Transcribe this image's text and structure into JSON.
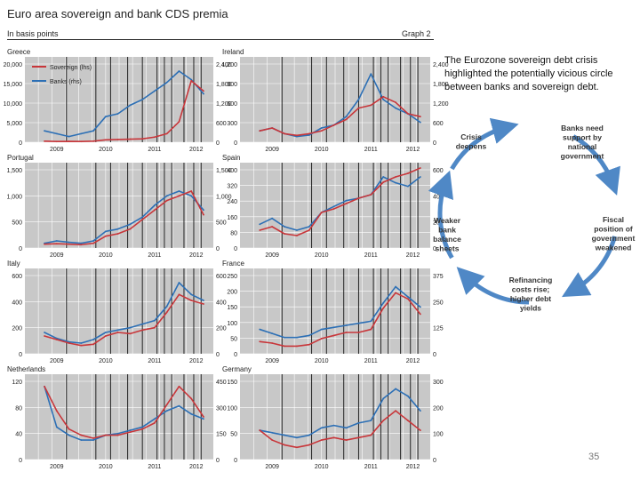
{
  "figure": {
    "title": "Euro area sovereign and bank CDS premia",
    "subtitle": "In basis points",
    "graph_label": "Graph 2"
  },
  "callout": "The Eurozone sovereign debt crisis highlighted the potentially vicious circle between banks and sovereign debt.",
  "cycle": {
    "nodes": [
      {
        "lines": [
          "Banks need",
          "support by",
          "national",
          "government"
        ]
      },
      {
        "lines": [
          "Fiscal",
          "position of",
          "government",
          "weakened"
        ]
      },
      {
        "lines": [
          "Refinancing",
          "costs rise;",
          "higher debt",
          "yields"
        ]
      },
      {
        "lines": [
          "Weaker",
          "bank",
          "balance",
          "sheets"
        ]
      },
      {
        "lines": [
          "Crisis",
          "deepens"
        ]
      }
    ]
  },
  "page_number": "35",
  "colors": {
    "sovereign": "#c8363a",
    "banks": "#2c6fb5",
    "panel_bg": "#c8c8c8",
    "grid": "#ffffff",
    "event_line": "#111111",
    "cycle_arrow": "#4f88c6"
  },
  "chart_data": [
    {
      "type": "line",
      "title": "Greece",
      "categories": [
        "2009",
        "2010",
        "2011",
        "2012"
      ],
      "x": [
        2009.0,
        2009.25,
        2009.5,
        2009.75,
        2010.0,
        2010.25,
        2010.5,
        2010.75,
        2011.0,
        2011.25,
        2011.5,
        2011.75,
        2012.0,
        2012.25
      ],
      "ylim_left": [
        0,
        25000
      ],
      "ylim_right": [
        0,
        3000
      ],
      "left_ticks": [
        "0",
        "5,000",
        "10,000",
        "15,000",
        "20,000"
      ],
      "right_ticks": [
        "0",
        "600",
        "1,200",
        "1,800",
        "2,400"
      ],
      "legend": [
        {
          "label": "Sovereign (lhs)"
        },
        {
          "label": "Banks (rhs)"
        }
      ],
      "series": [
        {
          "name": "Sovereign (lhs)",
          "axis": "left",
          "values": [
            300,
            200,
            250,
            200,
            300,
            700,
            800,
            900,
            1000,
            1500,
            2500,
            6000,
            18000,
            15000
          ]
        },
        {
          "name": "Banks (rhs)",
          "axis": "right",
          "values": [
            400,
            300,
            200,
            300,
            400,
            900,
            1000,
            1300,
            1500,
            1800,
            2100,
            2500,
            2200,
            1700
          ]
        }
      ]
    },
    {
      "type": "line",
      "title": "Ireland",
      "categories": [
        "2009",
        "2010",
        "2011",
        "2012"
      ],
      "x": [
        2009.0,
        2009.25,
        2009.5,
        2009.75,
        2010.0,
        2010.25,
        2010.5,
        2010.75,
        2011.0,
        2011.25,
        2011.5,
        2011.75,
        2012.0,
        2012.25
      ],
      "ylim_left": [
        0,
        1500
      ],
      "ylim_right": [
        0,
        3000
      ],
      "left_ticks": [
        "0",
        "300",
        "600",
        "900",
        "1,200"
      ],
      "right_ticks": [
        "0",
        "600",
        "1,200",
        "1,800",
        "2,400"
      ],
      "legend": [],
      "series": [
        {
          "name": "Sovereign",
          "axis": "left",
          "values": [
            200,
            250,
            150,
            120,
            150,
            200,
            300,
            400,
            600,
            650,
            800,
            700,
            500,
            450
          ]
        },
        {
          "name": "Banks",
          "axis": "right",
          "values": [
            400,
            500,
            300,
            200,
            250,
            500,
            600,
            900,
            1500,
            2400,
            1500,
            1200,
            1000,
            700
          ]
        }
      ]
    },
    {
      "type": "line",
      "title": "Portugal",
      "categories": [
        "2009",
        "2010",
        "2011",
        "2012"
      ],
      "x": [
        2009.0,
        2009.25,
        2009.5,
        2009.75,
        2010.0,
        2010.25,
        2010.5,
        2010.75,
        2011.0,
        2011.25,
        2011.5,
        2011.75,
        2012.0,
        2012.25
      ],
      "ylim_left": [
        0,
        1800
      ],
      "ylim_right": [
        0,
        1800
      ],
      "left_ticks": [
        "0",
        "500",
        "1,000",
        "1,500"
      ],
      "right_ticks": [
        "0",
        "500",
        "1,000",
        "1,500"
      ],
      "legend": [],
      "series": [
        {
          "name": "Sovereign",
          "axis": "left",
          "values": [
            80,
            90,
            80,
            70,
            100,
            250,
            300,
            400,
            600,
            800,
            1000,
            1100,
            1200,
            700
          ]
        },
        {
          "name": "Banks",
          "axis": "right",
          "values": [
            100,
            150,
            120,
            100,
            150,
            350,
            400,
            500,
            650,
            900,
            1100,
            1200,
            1100,
            800
          ]
        }
      ]
    },
    {
      "type": "line",
      "title": "Spain",
      "categories": [
        "2009",
        "2010",
        "2011",
        "2012"
      ],
      "x": [
        2009.0,
        2009.25,
        2009.5,
        2009.75,
        2010.0,
        2010.25,
        2010.5,
        2010.75,
        2011.0,
        2011.25,
        2011.5,
        2011.75,
        2012.0,
        2012.25
      ],
      "ylim_left": [
        0,
        480
      ],
      "ylim_right": [
        0,
        720
      ],
      "left_ticks": [
        "0",
        "80",
        "160",
        "240",
        "320",
        "400"
      ],
      "right_ticks": [
        "0",
        "200",
        "400",
        "600"
      ],
      "legend": [],
      "series": [
        {
          "name": "Sovereign",
          "axis": "left",
          "values": [
            100,
            120,
            80,
            70,
            100,
            200,
            220,
            250,
            280,
            300,
            370,
            400,
            420,
            450
          ]
        },
        {
          "name": "Banks",
          "axis": "right",
          "values": [
            200,
            250,
            180,
            150,
            180,
            300,
            350,
            400,
            420,
            450,
            600,
            550,
            520,
            600
          ]
        }
      ]
    },
    {
      "type": "line",
      "title": "Italy",
      "categories": [
        "2009",
        "2010",
        "2011",
        "2012"
      ],
      "x": [
        2009.0,
        2009.25,
        2009.5,
        2009.75,
        2010.0,
        2010.25,
        2010.5,
        2010.75,
        2011.0,
        2011.25,
        2011.5,
        2011.75,
        2012.0,
        2012.25
      ],
      "ylim_left": [
        0,
        720
      ],
      "ylim_right": [
        0,
        720
      ],
      "left_ticks": [
        "0",
        "200",
        "400",
        "600"
      ],
      "right_ticks": [
        "0",
        "200",
        "400",
        "600"
      ],
      "legend": [],
      "series": [
        {
          "name": "Sovereign",
          "axis": "left",
          "values": [
            150,
            120,
            90,
            70,
            80,
            150,
            180,
            170,
            200,
            220,
            350,
            500,
            450,
            420
          ]
        },
        {
          "name": "Banks",
          "axis": "right",
          "values": [
            180,
            130,
            100,
            90,
            120,
            180,
            200,
            220,
            250,
            280,
            400,
            600,
            500,
            450
          ]
        }
      ]
    },
    {
      "type": "line",
      "title": "France",
      "categories": [
        "2009",
        "2010",
        "2011",
        "2012"
      ],
      "x": [
        2009.0,
        2009.25,
        2009.5,
        2009.75,
        2010.0,
        2010.25,
        2010.5,
        2010.75,
        2011.0,
        2011.25,
        2011.5,
        2011.75,
        2012.0,
        2012.25
      ],
      "ylim_left": [
        0,
        280
      ],
      "ylim_right": [
        0,
        420
      ],
      "left_ticks": [
        "0",
        "50",
        "100",
        "150",
        "200",
        "250"
      ],
      "right_ticks": [
        "0",
        "125",
        "250",
        "375"
      ],
      "legend": [],
      "series": [
        {
          "name": "Sovereign",
          "axis": "left",
          "values": [
            40,
            35,
            25,
            25,
            30,
            50,
            60,
            70,
            70,
            80,
            150,
            200,
            180,
            130
          ]
        },
        {
          "name": "Banks",
          "axis": "right",
          "values": [
            120,
            100,
            80,
            80,
            90,
            120,
            130,
            140,
            150,
            160,
            250,
            330,
            280,
            230
          ]
        }
      ]
    },
    {
      "type": "line",
      "title": "Netherlands",
      "categories": [
        "2009",
        "2010",
        "2011",
        "2012"
      ],
      "x": [
        2009.0,
        2009.25,
        2009.5,
        2009.75,
        2010.0,
        2010.25,
        2010.5,
        2010.75,
        2011.0,
        2011.25,
        2011.5,
        2011.75,
        2012.0,
        2012.25
      ],
      "ylim_left": [
        0,
        140
      ],
      "ylim_right": [
        0,
        525
      ],
      "left_ticks": [
        "0",
        "40",
        "80",
        "120"
      ],
      "right_ticks": [
        "0",
        "150",
        "300",
        "450"
      ],
      "legend": [],
      "series": [
        {
          "name": "Sovereign",
          "axis": "left",
          "values": [
            120,
            80,
            50,
            40,
            35,
            40,
            40,
            45,
            50,
            60,
            90,
            120,
            100,
            70
          ]
        },
        {
          "name": "Banks",
          "axis": "right",
          "values": [
            450,
            200,
            150,
            120,
            120,
            150,
            160,
            180,
            200,
            250,
            300,
            330,
            280,
            250
          ]
        }
      ]
    },
    {
      "type": "line",
      "title": "Germany",
      "categories": [
        "2009",
        "2010",
        "2011",
        "2012"
      ],
      "x": [
        2009.0,
        2009.25,
        2009.5,
        2009.75,
        2010.0,
        2010.25,
        2010.5,
        2010.75,
        2011.0,
        2011.25,
        2011.5,
        2011.75,
        2012.0,
        2012.25
      ],
      "ylim_left": [
        0,
        175
      ],
      "ylim_right": [
        0,
        350
      ],
      "left_ticks": [
        "0",
        "50",
        "100",
        "150"
      ],
      "right_ticks": [
        "0",
        "100",
        "200",
        "300"
      ],
      "legend": [],
      "series": [
        {
          "name": "Sovereign",
          "axis": "left",
          "values": [
            60,
            40,
            30,
            25,
            30,
            40,
            45,
            40,
            45,
            50,
            80,
            100,
            80,
            60
          ]
        },
        {
          "name": "Banks",
          "axis": "right",
          "values": [
            120,
            110,
            100,
            90,
            100,
            130,
            140,
            130,
            150,
            160,
            250,
            290,
            260,
            200
          ]
        }
      ]
    }
  ]
}
